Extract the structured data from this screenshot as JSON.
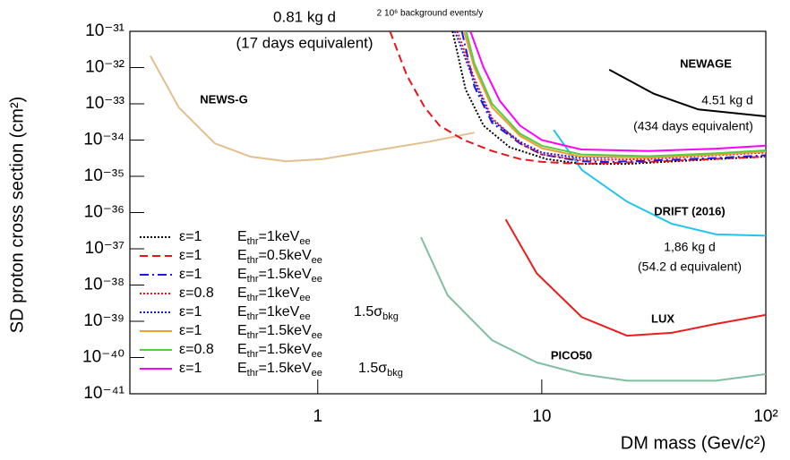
{
  "chart_data": {
    "type": "line",
    "xlabel": "DM mass (Gev/c²)",
    "ylabel": "SD proton cross section (cm²)",
    "xlog": true,
    "ylog": true,
    "xlim": [
      0.145,
      100
    ],
    "ylim": [
      1e-41,
      1e-31
    ],
    "xticks": [
      1,
      10,
      {
        "value": 100,
        "label": "10²"
      }
    ],
    "yticks": [
      {
        "value": 1e-41,
        "label": "10⁻⁴¹"
      },
      {
        "value": 1e-40,
        "label": "10⁻⁴⁰"
      },
      {
        "value": 1e-39,
        "label": "10⁻³⁹"
      },
      {
        "value": 1e-38,
        "label": "10⁻³⁸"
      },
      {
        "value": 1e-37,
        "label": "10⁻³⁷"
      },
      {
        "value": 1e-36,
        "label": "10⁻³⁶"
      },
      {
        "value": 1e-35,
        "label": "10⁻³⁵"
      },
      {
        "value": 1e-34,
        "label": "10⁻³⁴"
      },
      {
        "value": 1e-33,
        "label": "10⁻³³"
      },
      {
        "value": 1e-32,
        "label": "10⁻³²"
      },
      {
        "value": 1e-31,
        "label": "10⁻³¹"
      }
    ],
    "series": [
      {
        "name": "ε=1",
        "threshold": [
          "E",
          "thr",
          "=1keV",
          "ee"
        ],
        "color": "#000000",
        "dash": "dotted",
        "x": [
          4.0,
          4.57,
          5.5,
          7.2,
          10.5,
          15,
          24,
          60,
          100
        ],
        "values": [
          1e-31,
          2.5e-33,
          2.5e-34,
          6.3e-35,
          3e-35,
          2.2e-35,
          2.2e-35,
          3e-35,
          3.5e-35
        ]
      },
      {
        "name": "ε=1",
        "threshold": [
          "E",
          "thr",
          "=0.5keV",
          "ee"
        ],
        "color": "#e8141c",
        "dash": "dashed",
        "x": [
          2.1,
          2.5,
          3,
          3.5,
          4.5,
          6,
          8,
          10,
          15,
          30,
          100
        ],
        "values": [
          1e-31,
          6e-33,
          8e-34,
          2.5e-34,
          1e-34,
          5e-35,
          3e-35,
          2.5e-35,
          2.2e-35,
          2.5e-35,
          3.5e-35
        ]
      },
      {
        "name": "ε=1",
        "threshold": [
          "E",
          "thr",
          "=1.5keV",
          "ee"
        ],
        "color": "#1a1ae6",
        "dash": "dashdot",
        "x": [
          4.4,
          5,
          6,
          8,
          10,
          15,
          20,
          30,
          60,
          100
        ],
        "values": [
          1e-31,
          3e-33,
          3e-34,
          8e-35,
          4e-35,
          2.6e-35,
          2.5e-35,
          2.7e-35,
          3.2e-35,
          3.8e-35
        ]
      },
      {
        "name": "ε=0.8",
        "threshold": [
          "E",
          "thr",
          "=1keV",
          "ee"
        ],
        "color": "#e8141c",
        "dash": "dotted",
        "x": [
          4.2,
          5,
          6,
          8,
          10,
          15,
          30,
          60,
          100
        ],
        "values": [
          1e-31,
          5e-33,
          4e-34,
          8e-35,
          4e-35,
          2.8e-35,
          3e-35,
          3.8e-35,
          4.5e-35
        ]
      },
      {
        "name": "ε=1",
        "threshold": [
          "E",
          "thr",
          "=1keV",
          "ee"
        ],
        "extra": [
          "1.5σ",
          "bkg"
        ],
        "color": "#1a1ae6",
        "dash": "dotted",
        "x": [
          4.1,
          5,
          6,
          8,
          10,
          15,
          30,
          60,
          100
        ],
        "values": [
          1e-31,
          4e-33,
          3.5e-34,
          9e-35,
          4.5e-35,
          3.2e-35,
          3.5e-35,
          4.2e-35,
          5e-35
        ]
      },
      {
        "name": "ε=1",
        "threshold": [
          "E",
          "thr",
          "=1.5keV",
          "ee"
        ],
        "color": "#f39c32",
        "dash": "solid",
        "x": [
          4.5,
          5,
          6,
          8,
          10,
          15,
          30,
          60,
          100
        ],
        "values": [
          1e-31,
          1e-32,
          8e-34,
          1.3e-34,
          6e-35,
          3.5e-35,
          3.3e-35,
          4e-35,
          4.8e-35
        ]
      },
      {
        "name": "ε=0.8",
        "threshold": [
          "E",
          "thr",
          "=1.5keV",
          "ee"
        ],
        "color": "#55cc44",
        "dash": "solid",
        "x": [
          4.6,
          5,
          6,
          8,
          10,
          15,
          30,
          60,
          100
        ],
        "values": [
          1e-31,
          1.3e-32,
          1e-33,
          1.5e-34,
          7e-35,
          4e-35,
          3.6e-35,
          4.3e-35,
          5.2e-35
        ]
      },
      {
        "name": "ε=1",
        "threshold": [
          "E",
          "thr",
          "=1.5keV",
          "ee"
        ],
        "extra": [
          "1.5σ",
          "bkg"
        ],
        "color": "#ff00ff",
        "dash": "solid",
        "x": [
          4.8,
          5.5,
          6.5,
          8,
          10,
          15,
          30,
          60,
          100
        ],
        "values": [
          1e-31,
          1e-32,
          1.2e-33,
          2.5e-34,
          1e-34,
          5.5e-35,
          5e-35,
          5.8e-35,
          7e-35
        ]
      }
    ],
    "references": [
      {
        "name": "NEWAGE",
        "color": "#000000",
        "x": [
          20,
          31.6,
          50,
          100
        ],
        "values": [
          8.7e-33,
          1.9e-33,
          7e-34,
          4.5e-34
        ]
      },
      {
        "name": "NEWS-G",
        "color": "#e3bf8e",
        "x": [
          0.179,
          0.24,
          0.347,
          0.5,
          0.72,
          1.05,
          1.82,
          3.16,
          5.0
        ],
        "values": [
          2.1e-32,
          7.9e-34,
          8.1e-35,
          3.5e-35,
          2.6e-35,
          3e-35,
          5.2e-35,
          9.1e-35,
          1.6e-34
        ]
      },
      {
        "name": "DRIFT (2016)",
        "color": "#22c4ee",
        "x": [
          11.3,
          15.1,
          24,
          38,
          60,
          100
        ],
        "values": [
          1.9e-34,
          1.5e-35,
          2e-36,
          4.9e-37,
          2.5e-37,
          2.3e-37
        ]
      },
      {
        "name": "LUX",
        "color": "#ee1c1c",
        "x": [
          6.9,
          9.5,
          15.1,
          24,
          38,
          60,
          100
        ],
        "values": [
          6.5e-37,
          2.1e-38,
          1.3e-39,
          4e-40,
          4.8e-40,
          8.5e-40,
          1.5e-39
        ]
      },
      {
        "name": "PICO50",
        "color": "#7fbfa0",
        "x": [
          2.89,
          3.8,
          6,
          9.5,
          15,
          24,
          60,
          100
        ],
        "values": [
          2.1e-37,
          5.2e-39,
          3e-40,
          7.3e-41,
          3.5e-41,
          2.3e-41,
          2.3e-41,
          3.5e-41
        ]
      }
    ],
    "annotations": [
      {
        "text": "0.81 kg d",
        "color": "#000000"
      },
      {
        "text": "(17 days equivalent)",
        "color": "#000000"
      },
      {
        "text": "2 10⁶ background events/y",
        "color": "#000000"
      },
      {
        "text": "4.51 kg d",
        "color": "#000000"
      },
      {
        "text": "(434 days equivalent)",
        "color": "#000000"
      },
      {
        "text": "1,86 kg d",
        "color": "#4fc3e8"
      },
      {
        "text": "(54.2 d equivalent)",
        "color": "#4fc3e8"
      }
    ]
  }
}
